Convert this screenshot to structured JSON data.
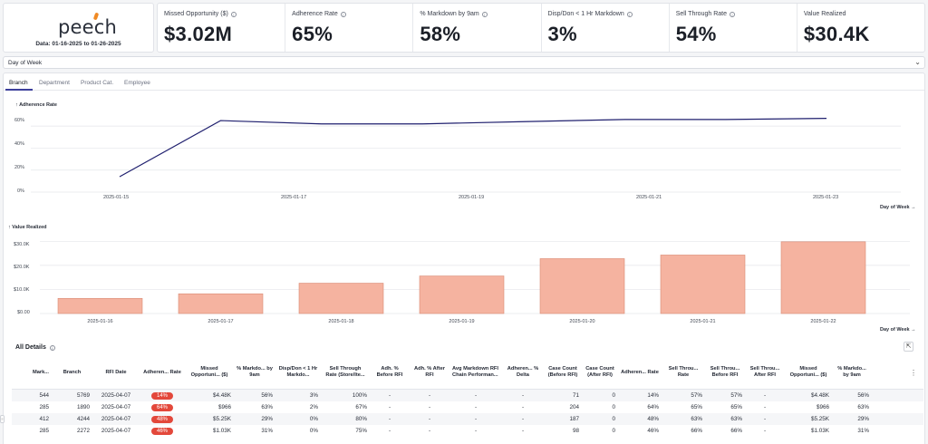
{
  "brand": {
    "name": "peech",
    "date_range": "Data: 01-16-2025 to 01-26-2025"
  },
  "kpis": [
    {
      "label": "Missed Opportunity ($)",
      "value": "$3.02M"
    },
    {
      "label": "Adherence Rate",
      "value": "65%"
    },
    {
      "label": "% Markdown by 9am",
      "value": "58%"
    },
    {
      "label": "Disp/Don < 1 Hr Markdown",
      "value": "3%"
    },
    {
      "label": "Sell Through Rate",
      "value": "54%"
    },
    {
      "label": "Value Realized",
      "value": "$30.4K"
    }
  ],
  "dimension_select": {
    "value": "Day of Week"
  },
  "tabs": [
    "Branch",
    "Department",
    "Product Cat.",
    "Employee"
  ],
  "line_chart": {
    "title": "↑ Adherence Rate",
    "y_ticks": [
      "60%",
      "40%",
      "20%",
      "0%"
    ],
    "x_labels": [
      "2025-01-15",
      "2025-01-17",
      "2025-01-19",
      "2025-01-21",
      "2025-01-23"
    ],
    "axis_link": "Day of Week →"
  },
  "bar_chart": {
    "title": "↑ Value Realized",
    "y_ticks": [
      "$30.0K",
      "$20.0K",
      "$10.0K",
      "$0.00"
    ],
    "x_labels": [
      "2025-01-16",
      "2025-01-17",
      "2025-01-18",
      "2025-01-19",
      "2025-01-20",
      "2025-01-21",
      "2025-01-22"
    ],
    "axis_link": "Day of Week →"
  },
  "chart_data": [
    {
      "type": "line",
      "title": "↑ Adherence Rate",
      "x": [
        "2025-01-16",
        "2025-01-17",
        "2025-01-18",
        "2025-01-19",
        "2025-01-20",
        "2025-01-21",
        "2025-01-22",
        "2025-01-23"
      ],
      "series": [
        {
          "values": [
            0.14,
            0.65,
            0.62,
            0.62,
            0.64,
            0.66,
            0.66,
            0.67
          ]
        }
      ],
      "ylim": [
        0,
        0.7
      ],
      "grid": true,
      "color": "#1f1f6e"
    },
    {
      "type": "bar",
      "title": "↑ Value Realized",
      "categories": [
        "2025-01-16",
        "2025-01-17",
        "2025-01-18",
        "2025-01-19",
        "2025-01-20",
        "2025-01-21",
        "2025-01-22"
      ],
      "values": [
        6300,
        8200,
        12600,
        15600,
        22800,
        24300,
        29800
      ],
      "ylim": [
        0,
        32000
      ],
      "grid": true,
      "color": "#f5b3a0"
    }
  ],
  "details": {
    "title": "All Details",
    "columns": [
      "Mark...",
      "Branch",
      "RFI Date",
      "Adheren... Rate",
      "Missed Opportuni... ($)",
      "% Markdo... by 9am",
      "Disp/Don < 1 Hr Markdo...",
      "Sell Through Rate (Store/Ite...",
      "Adh. % Before RFI",
      "Adh. % After RFI",
      "Avg Markdown RFI Chain Performan...",
      "Adheren... % Delta",
      "Case Count (Before RFI)",
      "Case Count (After RFI)",
      "Adheren... Rate",
      "Sell Throu... Rate",
      "Sell Throu... Before RFI",
      "Sell Throu... After RFI",
      "Missed Opportuni... ($)",
      "% Markdo... by 9am"
    ],
    "rows": [
      [
        "544",
        "5769",
        "2025-04-07",
        "14%",
        "$4.48K",
        "56%",
        "3%",
        "100%",
        "-",
        "-",
        "-",
        "-",
        "71",
        "0",
        "14%",
        "57%",
        "57%",
        "-",
        "$4.48K",
        "56%"
      ],
      [
        "285",
        "1890",
        "2025-04-07",
        "64%",
        "$966",
        "63%",
        "2%",
        "67%",
        "-",
        "-",
        "-",
        "-",
        "204",
        "0",
        "64%",
        "65%",
        "65%",
        "-",
        "$966",
        "63%"
      ],
      [
        "412",
        "4244",
        "2025-04-07",
        "48%",
        "$5.25K",
        "29%",
        "0%",
        "80%",
        "-",
        "-",
        "-",
        "-",
        "187",
        "0",
        "48%",
        "63%",
        "63%",
        "-",
        "$5.25K",
        "29%"
      ],
      [
        "285",
        "2272",
        "2025-04-07",
        "46%",
        "$1.03K",
        "31%",
        "0%",
        "75%",
        "-",
        "-",
        "-",
        "-",
        "98",
        "0",
        "46%",
        "66%",
        "66%",
        "-",
        "$1.03K",
        "31%"
      ]
    ]
  },
  "colors": {
    "accent": "#3c3f9c",
    "line": "#1f1f6e",
    "bar": "#f5b3a0",
    "bar_stroke": "#d98a74",
    "badge": "#e3483b"
  }
}
